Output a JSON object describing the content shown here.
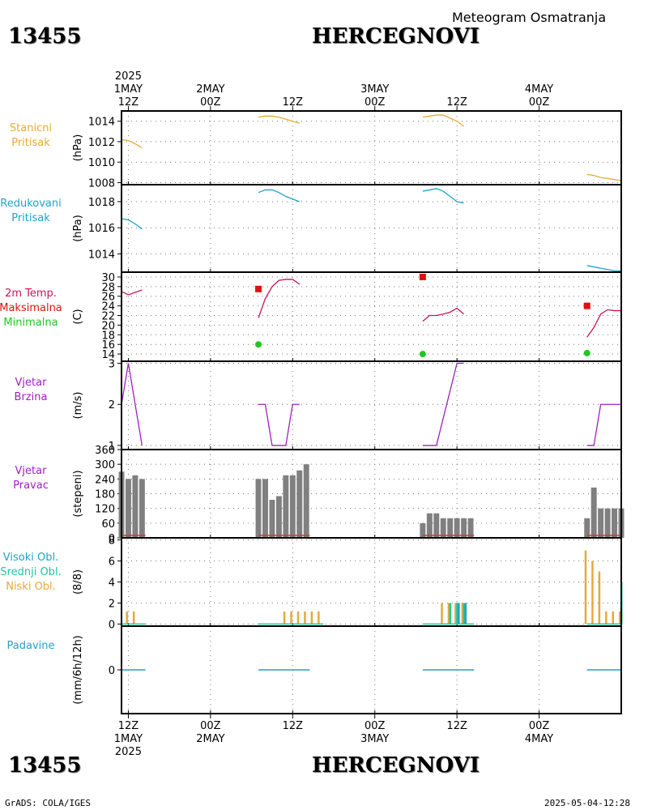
{
  "header": {
    "station_id": "13455",
    "station_name": "HERCEGNOVI",
    "product": "Meteogram Osmatranja"
  },
  "footer": {
    "station_id": "13455",
    "station_name": "HERCEGNOVI",
    "credit": "GrADS: COLA/IGES",
    "timestamp": "2025-05-04-12:28"
  },
  "time_axis": {
    "top": [
      {
        "hour": 0,
        "lines": [
          "2025",
          "1MAY",
          "12Z"
        ]
      },
      {
        "hour": 12,
        "lines": [
          "2MAY",
          "00Z"
        ]
      },
      {
        "hour": 24,
        "lines": [
          "12Z"
        ]
      },
      {
        "hour": 36,
        "lines": [
          "3MAY",
          "00Z"
        ]
      },
      {
        "hour": 48,
        "lines": [
          "12Z"
        ]
      },
      {
        "hour": 60,
        "lines": [
          "4MAY",
          "00Z"
        ]
      }
    ],
    "bottom": [
      {
        "hour": 0,
        "lines": [
          "12Z",
          "1MAY",
          "2025"
        ]
      },
      {
        "hour": 12,
        "lines": [
          "00Z",
          "2MAY"
        ]
      },
      {
        "hour": 24,
        "lines": [
          "12Z"
        ]
      },
      {
        "hour": 36,
        "lines": [
          "00Z",
          "3MAY"
        ]
      },
      {
        "hour": 48,
        "lines": [
          "12Z"
        ]
      },
      {
        "hour": 60,
        "lines": [
          "00Z",
          "4MAY"
        ]
      }
    ]
  },
  "panel_labels": {
    "pressure": [
      {
        "text": "Stanicni",
        "color": "#e8a838"
      },
      {
        "text": "Pritisak",
        "color": "#e8a838"
      }
    ],
    "reduced": [
      {
        "text": "Redukovani",
        "color": "#1fa3c8"
      },
      {
        "text": "Pritisak",
        "color": "#1fa3c8"
      }
    ],
    "temp": [
      {
        "text": "2m Temp.",
        "color": "#c8145a"
      },
      {
        "text": "Maksimalna",
        "color": "#e01010"
      },
      {
        "text": "Minimalna",
        "color": "#1ec81e"
      }
    ],
    "wind_speed": [
      {
        "text": "Vjetar",
        "color": "#a020c0"
      },
      {
        "text": "Brzina",
        "color": "#a020c0"
      }
    ],
    "wind_dir": [
      {
        "text": "Vjetar",
        "color": "#a020c0"
      },
      {
        "text": "Pravac",
        "color": "#a020c0"
      }
    ],
    "clouds": [
      {
        "text": "Visoki Obl.",
        "color": "#1fa3c8"
      },
      {
        "text": "Srednji Obl.",
        "color": "#1ec8a0"
      },
      {
        "text": "Niski Obl.",
        "color": "#e8a838"
      }
    ],
    "precip": [
      {
        "text": "Padavine",
        "color": "#1fa3c8"
      }
    ]
  },
  "chart_data": [
    {
      "id": "pressure",
      "type": "line",
      "ylabel": "(hPa)",
      "ylim": [
        1007.8,
        1015.0
      ],
      "yticks": [
        1008,
        1010,
        1012,
        1014
      ],
      "grid": true,
      "series": [
        {
          "color": "#e8a838",
          "segments": [
            [
              [
                -1,
                1012.2
              ],
              [
                0,
                1012.1
              ],
              [
                1,
                1011.8
              ],
              [
                2,
                1011.4
              ]
            ],
            [
              [
                19,
                1014.4
              ],
              [
                20,
                1014.5
              ],
              [
                21,
                1014.5
              ],
              [
                22,
                1014.4
              ],
              [
                23,
                1014.2
              ],
              [
                24,
                1014.0
              ],
              [
                25,
                1013.8
              ]
            ],
            [
              [
                43,
                1014.4
              ],
              [
                44,
                1014.5
              ],
              [
                45,
                1014.6
              ],
              [
                46,
                1014.6
              ],
              [
                47,
                1014.3
              ],
              [
                48,
                1014.0
              ],
              [
                49,
                1013.5
              ]
            ],
            [
              [
                67,
                1008.8
              ],
              [
                68,
                1008.7
              ],
              [
                69,
                1008.5
              ],
              [
                70,
                1008.4
              ],
              [
                71,
                1008.3
              ],
              [
                72,
                1008.2
              ]
            ]
          ]
        }
      ]
    },
    {
      "id": "reduced",
      "type": "line",
      "ylabel": "(hPa)",
      "ylim": [
        1012.6,
        1019.3
      ],
      "yticks": [
        1014,
        1016,
        1018
      ],
      "grid": true,
      "series": [
        {
          "color": "#1fa3c8",
          "segments": [
            [
              [
                -1,
                1016.7
              ],
              [
                0,
                1016.6
              ],
              [
                1,
                1016.3
              ],
              [
                2,
                1015.9
              ]
            ],
            [
              [
                19,
                1018.7
              ],
              [
                20,
                1018.9
              ],
              [
                21,
                1018.9
              ],
              [
                22,
                1018.7
              ],
              [
                23,
                1018.4
              ],
              [
                24,
                1018.2
              ],
              [
                25,
                1018.0
              ]
            ],
            [
              [
                43,
                1018.8
              ],
              [
                44,
                1018.9
              ],
              [
                45,
                1019.0
              ],
              [
                46,
                1018.8
              ],
              [
                47,
                1018.4
              ],
              [
                48,
                1018.0
              ],
              [
                49,
                1017.9
              ]
            ],
            [
              [
                67,
                1013.1
              ],
              [
                68,
                1013.0
              ],
              [
                69,
                1012.9
              ],
              [
                70,
                1012.8
              ],
              [
                71,
                1012.7
              ],
              [
                72,
                1012.7
              ]
            ]
          ]
        }
      ]
    },
    {
      "id": "temp",
      "type": "line",
      "ylabel": "(C)",
      "ylim": [
        12.5,
        31
      ],
      "yticks": [
        14,
        16,
        18,
        20,
        22,
        24,
        26,
        28,
        30
      ],
      "grid": true,
      "series": [
        {
          "name": "2m Temp.",
          "color": "#c8145a",
          "segments": [
            [
              [
                -1,
                27
              ],
              [
                0,
                26.3
              ],
              [
                1,
                26.8
              ],
              [
                2,
                27.3
              ]
            ],
            [
              [
                19,
                21.5
              ],
              [
                20,
                25.5
              ],
              [
                21,
                28
              ],
              [
                22,
                29.3
              ],
              [
                23,
                29.5
              ],
              [
                24,
                29.5
              ],
              [
                25,
                28.5
              ]
            ],
            [
              [
                43,
                20.8
              ],
              [
                44,
                22
              ],
              [
                45,
                22
              ],
              [
                46,
                22.3
              ],
              [
                47,
                22.7
              ],
              [
                48,
                23.5
              ],
              [
                49,
                22.3
              ]
            ],
            [
              [
                67,
                17.5
              ],
              [
                68,
                19.5
              ],
              [
                69,
                22.3
              ],
              [
                70,
                23.2
              ],
              [
                71,
                23
              ],
              [
                72,
                23
              ]
            ]
          ]
        },
        {
          "name": "Maksimalna",
          "color": "#e01010",
          "marker": "square",
          "points": [
            [
              19,
              27.5
            ],
            [
              43,
              30
            ],
            [
              67,
              24
            ]
          ]
        },
        {
          "name": "Minimalna",
          "color": "#1ec81e",
          "marker": "circle",
          "points": [
            [
              19,
              16
            ],
            [
              43,
              14
            ],
            [
              67,
              14.2
            ]
          ]
        }
      ]
    },
    {
      "id": "wind_speed",
      "type": "line",
      "ylabel": "(m/s)",
      "ylim": [
        0.9,
        3.05
      ],
      "yticks": [
        1,
        2,
        3
      ],
      "grid": true,
      "series": [
        {
          "color": "#a020c0",
          "segments": [
            [
              [
                -1,
                2
              ],
              [
                0,
                3
              ],
              [
                2,
                1
              ]
            ],
            [
              [
                19,
                2
              ],
              [
                20,
                2
              ],
              [
                21,
                1
              ],
              [
                22,
                1
              ],
              [
                23,
                1
              ],
              [
                24,
                2
              ],
              [
                25,
                2
              ]
            ],
            [
              [
                43,
                1
              ],
              [
                45,
                1
              ],
              [
                48,
                3
              ],
              [
                49,
                3
              ]
            ],
            [
              [
                67,
                1
              ],
              [
                68,
                1
              ],
              [
                69,
                2
              ],
              [
                70,
                2
              ],
              [
                71,
                2
              ],
              [
                72,
                2
              ]
            ]
          ]
        }
      ]
    },
    {
      "id": "wind_dir",
      "type": "bar",
      "ylabel": "(stepeni)",
      "ylim": [
        0,
        360
      ],
      "yticks": [
        0,
        60,
        120,
        180,
        240,
        300,
        360
      ],
      "grid": true,
      "bar_color": "#808080",
      "calm_color": "#c83c3c",
      "bars": [
        [
          -1,
          270
        ],
        [
          0,
          240
        ],
        [
          1,
          255
        ],
        [
          2,
          240
        ],
        [
          19,
          240
        ],
        [
          20,
          240
        ],
        [
          21,
          155
        ],
        [
          22,
          170
        ],
        [
          23,
          255
        ],
        [
          24,
          255
        ],
        [
          25,
          275
        ],
        [
          26,
          300
        ],
        [
          43,
          60
        ],
        [
          44,
          100
        ],
        [
          45,
          100
        ],
        [
          46,
          80
        ],
        [
          47,
          80
        ],
        [
          48,
          80
        ],
        [
          49,
          80
        ],
        [
          50,
          80
        ],
        [
          67,
          80
        ],
        [
          68,
          205
        ],
        [
          69,
          120
        ],
        [
          70,
          120
        ],
        [
          71,
          120
        ],
        [
          72,
          120
        ]
      ],
      "calm_segments": [
        [
          -1,
          2.5
        ],
        [
          19,
          26.5
        ],
        [
          43,
          50.5
        ],
        [
          67,
          72
        ]
      ]
    },
    {
      "id": "clouds",
      "type": "bar",
      "ylabel": "(8/8)",
      "ylim": [
        -0.2,
        8.2
      ],
      "yticks": [
        0,
        2,
        4,
        6,
        8
      ],
      "grid": true,
      "series": [
        {
          "name": "Niski Obl.",
          "color": "#e8a838",
          "bars": [
            [
              0,
              1.2
            ],
            [
              1,
              1.2
            ],
            [
              23,
              1.2
            ],
            [
              24,
              1.2
            ],
            [
              25,
              1.2
            ],
            [
              26,
              1.2
            ],
            [
              27,
              1.2
            ],
            [
              28,
              1.2
            ],
            [
              46,
              2
            ],
            [
              47,
              2
            ],
            [
              48,
              2
            ],
            [
              49,
              2
            ],
            [
              67,
              7
            ],
            [
              68,
              6
            ],
            [
              69,
              5
            ],
            [
              70,
              1.2
            ],
            [
              71,
              1.2
            ],
            [
              72,
              1.2
            ]
          ]
        },
        {
          "name": "Srednji Obl.",
          "color": "#1ec8a0",
          "bars": [
            [
              47,
              2
            ],
            [
              48,
              2
            ],
            [
              49,
              2
            ],
            [
              72,
              4
            ]
          ]
        },
        {
          "name": "Visoki Obl.",
          "color": "#1fa3c8",
          "bars": [
            [
              48,
              2
            ],
            [
              49,
              2
            ]
          ]
        }
      ],
      "zero_segments": [
        [
          -1,
          2.5
        ],
        [
          19,
          28.5
        ],
        [
          43,
          50.5
        ],
        [
          67,
          72
        ]
      ]
    },
    {
      "id": "precip",
      "type": "line",
      "ylabel": "(mm/6h/12h)",
      "ylim": [
        -4.5,
        4.5
      ],
      "yticks": [
        0
      ],
      "grid": false,
      "color": "#1fa3c8",
      "zero_segments": [
        [
          -1,
          2.5
        ],
        [
          19,
          26.5
        ],
        [
          43,
          50.5
        ],
        [
          67,
          72
        ]
      ]
    }
  ]
}
